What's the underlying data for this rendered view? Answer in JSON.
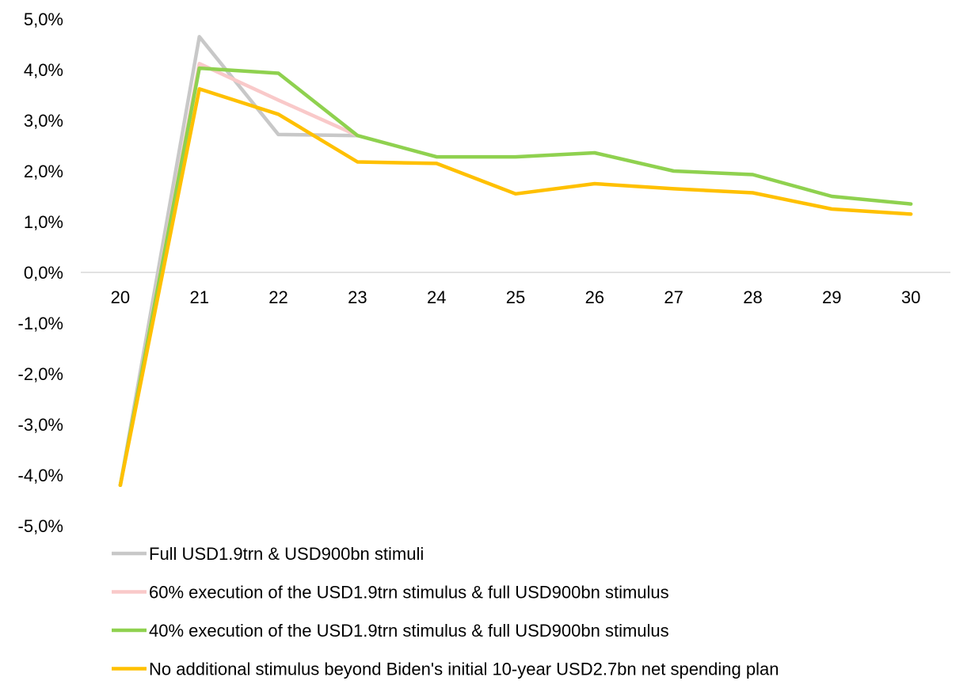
{
  "chart_data": {
    "type": "line",
    "title": "",
    "xlabel": "",
    "ylabel": "",
    "x": [
      "20",
      "21",
      "22",
      "23",
      "24",
      "25",
      "26",
      "27",
      "28",
      "29",
      "30"
    ],
    "y_ticks": [
      "5,0%",
      "4,0%",
      "3,0%",
      "2,0%",
      "1,0%",
      "0,0%",
      "-1,0%",
      "-2,0%",
      "-3,0%",
      "-4,0%",
      "-5,0%"
    ],
    "ylim": [
      -5,
      5
    ],
    "grid": false,
    "legend_position": "bottom",
    "series": [
      {
        "name": "Full USD1.9trn & USD900bn stimuli",
        "color": "#c8c8c8",
        "values": [
          -4.2,
          4.65,
          2.72,
          2.7,
          null,
          null,
          null,
          null,
          null,
          null,
          null
        ]
      },
      {
        "name": "60% execution of the USD1.9trn stimulus & full USD900bn stimulus",
        "color": "#f9c9c9",
        "values": [
          -4.2,
          4.12,
          3.4,
          2.7,
          null,
          null,
          null,
          null,
          null,
          null,
          null
        ]
      },
      {
        "name": "40% execution of the USD1.9trn stimulus & full USD900bn stimulus",
        "color": "#8fd14f",
        "values": [
          -4.2,
          4.03,
          3.93,
          2.7,
          2.28,
          2.28,
          2.36,
          2.0,
          1.93,
          1.5,
          1.35
        ]
      },
      {
        "name": "No additional stimulus beyond Biden's initial 10-year USD2.7bn net spending plan",
        "color": "#ffc000",
        "values": [
          -4.2,
          3.62,
          3.12,
          2.18,
          2.15,
          1.55,
          1.75,
          1.65,
          1.57,
          1.25,
          1.15
        ]
      }
    ]
  }
}
